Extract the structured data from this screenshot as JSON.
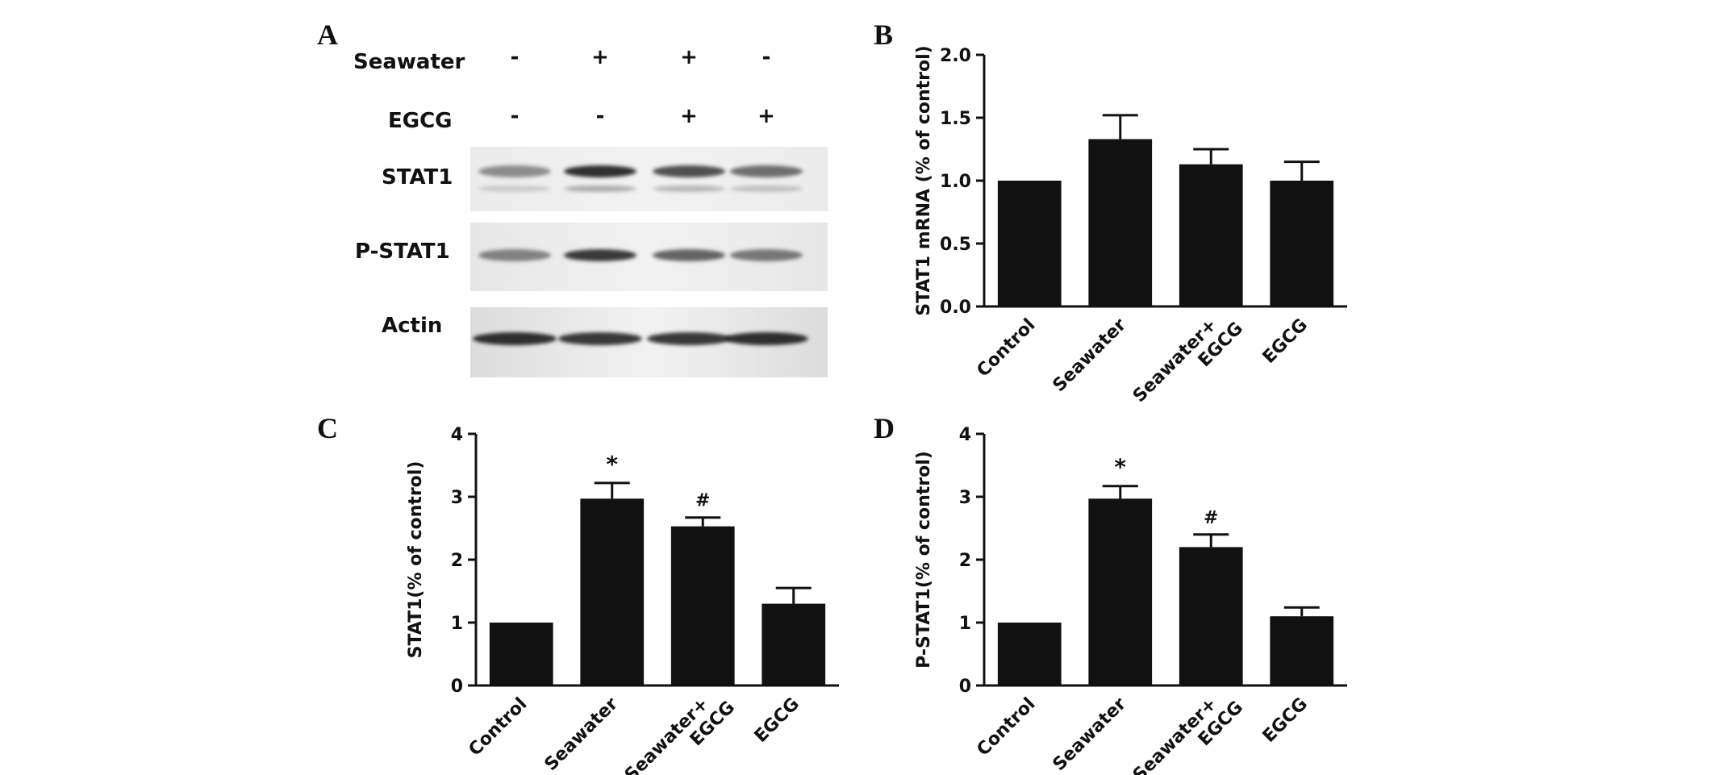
{
  "panels": {
    "a": "A",
    "b": "B",
    "c": "C",
    "d": "D"
  },
  "western_blot": {
    "conditions": [
      {
        "label": "Seawater",
        "signs": [
          "-",
          "+",
          "+",
          "-"
        ]
      },
      {
        "label": "EGCG",
        "signs": [
          "-",
          "-",
          "+",
          "+"
        ]
      }
    ],
    "rows": [
      {
        "label": "STAT1",
        "band_intensity": [
          0.45,
          0.9,
          0.75,
          0.6
        ]
      },
      {
        "label": "P-STAT1",
        "band_intensity": [
          0.5,
          0.85,
          0.65,
          0.55
        ]
      },
      {
        "label": "Actin",
        "band_intensity": [
          0.9,
          0.85,
          0.85,
          0.9
        ]
      }
    ]
  },
  "chart_data": [
    {
      "panel": "B",
      "type": "bar",
      "categories": [
        "Control",
        "Seawater",
        "Seawater+\nEGCG",
        "EGCG"
      ],
      "values": [
        1.0,
        1.33,
        1.13,
        1.0
      ],
      "errors": [
        0.0,
        0.19,
        0.12,
        0.15
      ],
      "annotations": [
        "",
        "",
        "",
        ""
      ],
      "ylabel": "STAT1 mRNA  (% of control)",
      "ylim": [
        0,
        2.0
      ],
      "yticks": [
        "0.0",
        "0.5",
        "1.0",
        "1.5",
        "2.0"
      ],
      "ytick_values": [
        0,
        0.5,
        1.0,
        1.5,
        2.0
      ],
      "color": "#111111"
    },
    {
      "panel": "C",
      "type": "bar",
      "categories": [
        "Control",
        "Seawater",
        "Seawater+\nEGCG",
        "EGCG"
      ],
      "values": [
        1.0,
        2.97,
        2.53,
        1.3
      ],
      "errors": [
        0.0,
        0.25,
        0.14,
        0.25
      ],
      "annotations": [
        "",
        "*",
        "#",
        ""
      ],
      "ylabel": "STAT1(% of control)",
      "ylim": [
        0,
        4
      ],
      "yticks": [
        "0",
        "1",
        "2",
        "3",
        "4"
      ],
      "ytick_values": [
        0,
        1,
        2,
        3,
        4
      ],
      "color": "#111111"
    },
    {
      "panel": "D",
      "type": "bar",
      "categories": [
        "Control",
        "Seawater",
        "Seawater+\nEGCG",
        "EGCG"
      ],
      "values": [
        1.0,
        2.97,
        2.2,
        1.1
      ],
      "errors": [
        0.0,
        0.2,
        0.2,
        0.14
      ],
      "annotations": [
        "",
        "*",
        "#",
        ""
      ],
      "ylabel": "P-STAT1(% of control)",
      "ylim": [
        0,
        4
      ],
      "yticks": [
        "0",
        "1",
        "2",
        "3",
        "4"
      ],
      "ytick_values": [
        0,
        1,
        2,
        3,
        4
      ],
      "color": "#111111"
    }
  ]
}
